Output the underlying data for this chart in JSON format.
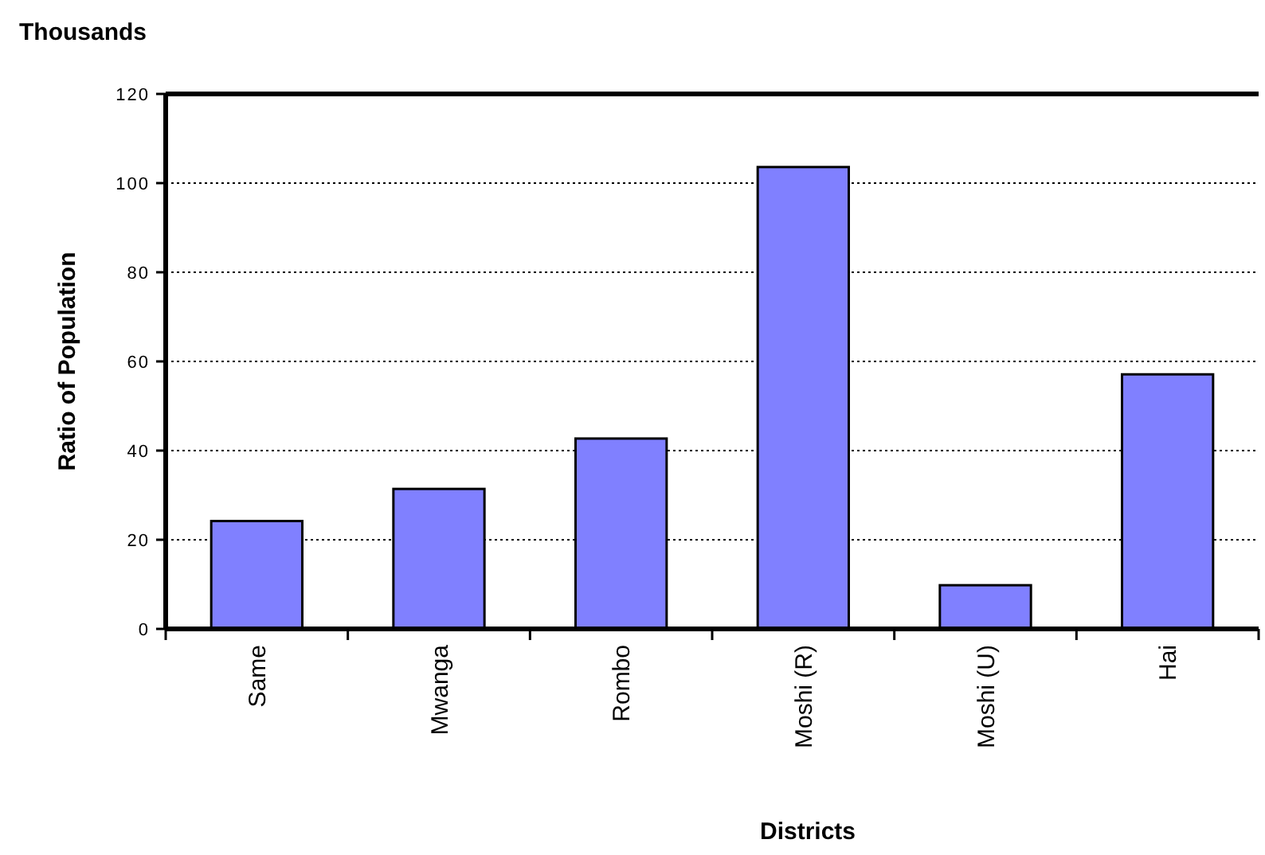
{
  "chart_data": {
    "type": "bar",
    "title": "Thousands",
    "xlabel": "Districts",
    "ylabel": "Ratio of Population",
    "categories": [
      "Same",
      "Mwanga",
      "Rombo",
      "Moshi (R)",
      "Moshi (U)",
      "Hai"
    ],
    "values": [
      24.2,
      31.4,
      42.7,
      103.6,
      9.8,
      57.1
    ],
    "color": "#8080ff",
    "ylim": [
      0,
      120
    ],
    "yticks": [
      0,
      20,
      40,
      60,
      80,
      100,
      120
    ],
    "grid": "y"
  }
}
